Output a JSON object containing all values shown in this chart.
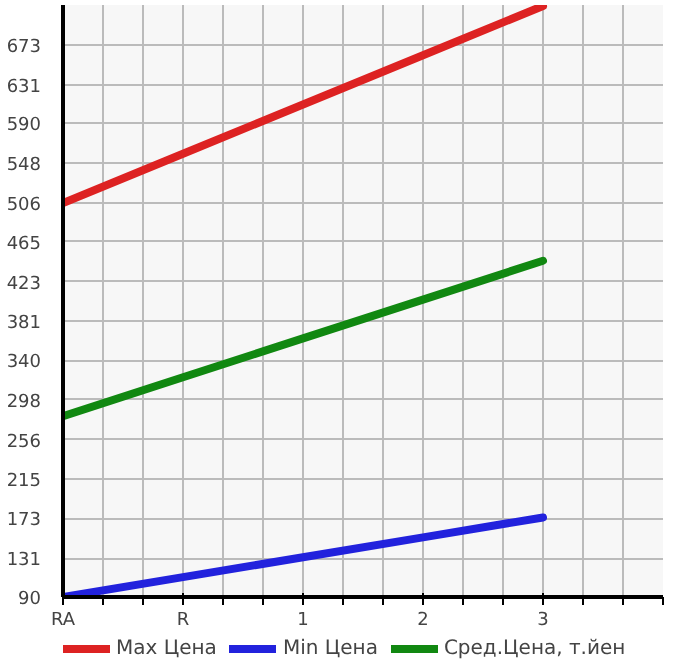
{
  "chart_data": {
    "type": "line",
    "categories": [
      "RA",
      "R",
      "1",
      "2",
      "3"
    ],
    "series": [
      {
        "name": "Max Цена",
        "color": "#dd2222",
        "values": [
          506,
          558,
          610,
          662,
          714
        ]
      },
      {
        "name": "Min Цена",
        "color": "#2222dd",
        "values": [
          90,
          111,
          132,
          153,
          174
        ]
      },
      {
        "name": "Сред.Цена, т.йен",
        "color": "#118811",
        "values": [
          281,
          322,
          363,
          404,
          445
        ]
      }
    ],
    "ylim": [
      90,
      715
    ],
    "yticks": [
      90,
      131,
      173,
      215,
      256,
      298,
      340,
      381,
      423,
      465,
      506,
      548,
      590,
      631,
      673
    ],
    "grid": true,
    "legend": "bottom",
    "marker": "none",
    "line_style": "solid"
  }
}
